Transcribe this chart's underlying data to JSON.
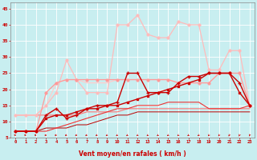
{
  "background_color": "#c8eef0",
  "grid_color": "#aadddd",
  "xlabel": "Vent moyen/en rafales ( km/h )",
  "xlabel_color": "#cc0000",
  "xlim": [
    -0.5,
    23.5
  ],
  "ylim": [
    5,
    47
  ],
  "yticks": [
    5,
    10,
    15,
    20,
    25,
    30,
    35,
    40,
    45
  ],
  "xticks": [
    0,
    1,
    2,
    3,
    4,
    5,
    6,
    7,
    8,
    9,
    10,
    11,
    12,
    13,
    14,
    15,
    16,
    17,
    18,
    19,
    20,
    21,
    22,
    23
  ],
  "series": [
    {
      "x": [
        0,
        1,
        2,
        3,
        4,
        5,
        6,
        7,
        8,
        9,
        10,
        11,
        12,
        13,
        14,
        15,
        16,
        17,
        18,
        19,
        20,
        21,
        22,
        23
      ],
      "y": [
        7,
        7,
        7,
        11,
        12,
        12,
        13,
        14,
        14,
        15,
        15,
        16,
        17,
        18,
        19,
        20,
        21,
        22,
        23,
        25,
        25,
        25,
        19,
        15
      ],
      "color": "#cc0000",
      "lw": 1.0,
      "marker": "s",
      "ms": 2.0,
      "zorder": 6
    },
    {
      "x": [
        0,
        1,
        2,
        3,
        4,
        5,
        6,
        7,
        8,
        9,
        10,
        11,
        12,
        13,
        14,
        15,
        16,
        17,
        18,
        19,
        20,
        21,
        22,
        23
      ],
      "y": [
        7,
        7,
        7,
        12,
        14,
        11,
        12,
        14,
        15,
        15,
        16,
        25,
        25,
        19,
        19,
        19,
        22,
        24,
        24,
        25,
        25,
        25,
        22,
        15
      ],
      "color": "#cc0000",
      "lw": 1.0,
      "marker": "+",
      "ms": 3.0,
      "zorder": 5
    },
    {
      "x": [
        0,
        1,
        2,
        3,
        4,
        5,
        6,
        7,
        8,
        9,
        10,
        11,
        12,
        13,
        14,
        15,
        16,
        17,
        18,
        19,
        20,
        21,
        22,
        23
      ],
      "y": [
        7,
        7,
        7,
        7,
        8,
        9,
        10,
        11,
        12,
        13,
        14,
        14,
        15,
        15,
        15,
        16,
        16,
        16,
        16,
        14,
        14,
        14,
        14,
        15
      ],
      "color": "#ee3333",
      "lw": 0.8,
      "marker": null,
      "ms": 0,
      "zorder": 3
    },
    {
      "x": [
        0,
        1,
        2,
        3,
        4,
        5,
        6,
        7,
        8,
        9,
        10,
        11,
        12,
        13,
        14,
        15,
        16,
        17,
        18,
        19,
        20,
        21,
        22,
        23
      ],
      "y": [
        12,
        12,
        12,
        12,
        12,
        12,
        12,
        13,
        13,
        13,
        13,
        14,
        14,
        14,
        14,
        14,
        14,
        14,
        14,
        14,
        14,
        14,
        14,
        14
      ],
      "color": "#ff7777",
      "lw": 0.8,
      "marker": null,
      "ms": 0,
      "zorder": 2
    },
    {
      "x": [
        0,
        1,
        2,
        3,
        4,
        5,
        6,
        7,
        8,
        9,
        10,
        11,
        12,
        13,
        14,
        15,
        16,
        17,
        18,
        19,
        20,
        21,
        22,
        23
      ],
      "y": [
        7,
        7,
        7,
        19,
        22,
        23,
        23,
        23,
        23,
        23,
        23,
        23,
        23,
        23,
        23,
        23,
        22,
        22,
        22,
        22,
        25,
        25,
        25,
        15
      ],
      "color": "#ff9999",
      "lw": 0.9,
      "marker": "o",
      "ms": 2.0,
      "zorder": 4
    },
    {
      "x": [
        0,
        1,
        2,
        3,
        4,
        5,
        6,
        7,
        8,
        9,
        10,
        11,
        12,
        13,
        14,
        15,
        16,
        17,
        18,
        19,
        20,
        21,
        22,
        23
      ],
      "y": [
        12,
        12,
        12,
        15,
        19,
        29,
        23,
        19,
        19,
        19,
        40,
        40,
        43,
        37,
        36,
        36,
        41,
        40,
        40,
        26,
        26,
        32,
        32,
        15
      ],
      "color": "#ffbbbb",
      "lw": 0.9,
      "marker": "o",
      "ms": 2.0,
      "zorder": 3
    },
    {
      "x": [
        0,
        1,
        2,
        3,
        4,
        5,
        6,
        7,
        8,
        9,
        10,
        11,
        12,
        13,
        14,
        15,
        16,
        17,
        18,
        19,
        20,
        21,
        22,
        23
      ],
      "y": [
        12,
        12,
        12,
        15,
        22,
        23,
        23,
        22,
        22,
        22,
        23,
        23,
        23,
        23,
        23,
        23,
        22,
        22,
        22,
        22,
        25,
        25,
        25,
        15
      ],
      "color": "#ffcccc",
      "lw": 0.9,
      "marker": null,
      "ms": 0,
      "zorder": 2
    },
    {
      "x": [
        0,
        1,
        2,
        3,
        4,
        5,
        6,
        7,
        8,
        9,
        10,
        11,
        12,
        13,
        14,
        15,
        16,
        17,
        18,
        19,
        20,
        21,
        22,
        23
      ],
      "y": [
        7,
        7,
        7,
        8,
        8,
        8,
        9,
        9,
        10,
        11,
        12,
        12,
        13,
        13,
        13,
        13,
        13,
        13,
        13,
        13,
        13,
        13,
        13,
        13
      ],
      "color": "#bb0000",
      "lw": 0.7,
      "marker": null,
      "ms": 0,
      "zorder": 1
    }
  ]
}
